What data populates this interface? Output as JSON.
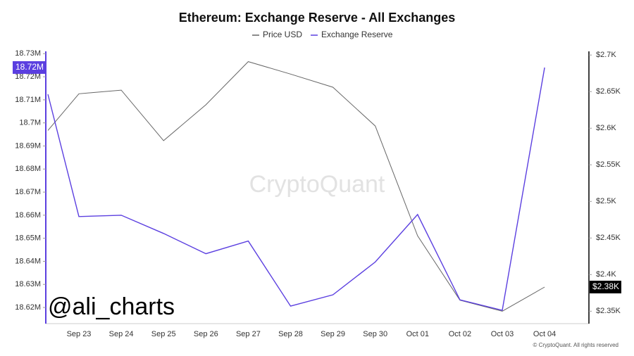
{
  "chart_data": {
    "type": "line",
    "title": "Ethereum: Exchange Reserve - All Exchanges",
    "watermark": "CryptoQuant",
    "handle": "@ali_charts",
    "copyright": "© CryptoQuant. All rights reserved",
    "categories": [
      null,
      "Sep 23",
      "Sep 24",
      "Sep 25",
      "Sep 26",
      "Sep 27",
      "Sep 28",
      "Sep 29",
      "Sep 30",
      "Oct 01",
      "Oct 02",
      "Oct 03",
      "Oct 04"
    ],
    "series": [
      {
        "name": "Price USD",
        "color": "#666666",
        "axis": "y2",
        "values": [
          2597,
          2647,
          2652,
          2583,
          2632,
          2691,
          2674,
          2656,
          2603,
          2453,
          2365,
          2350,
          2383
        ],
        "value_labels": [
          null,
          null,
          null,
          null,
          null,
          null,
          null,
          null,
          null,
          null,
          null,
          null,
          "$2.38K"
        ]
      },
      {
        "name": "Exchange Reserve",
        "color": "#5b3fe0",
        "values": [
          18712400,
          18659400,
          18660000,
          18652100,
          18643300,
          18648800,
          18620600,
          18625500,
          18639700,
          18660300,
          18623300,
          18618800,
          18724000
        ],
        "value_labels": [
          null,
          null,
          null,
          null,
          null,
          null,
          null,
          null,
          null,
          null,
          null,
          null,
          "18.72M"
        ]
      }
    ],
    "ylim": [
      18613000,
      18731000
    ],
    "yticks": [
      {
        "value": 18620000,
        "label": "18.62M"
      },
      {
        "value": 18630000,
        "label": "18.63M"
      },
      {
        "value": 18640000,
        "label": "18.64M"
      },
      {
        "value": 18650000,
        "label": "18.65M"
      },
      {
        "value": 18660000,
        "label": "18.66M"
      },
      {
        "value": 18670000,
        "label": "18.67M"
      },
      {
        "value": 18680000,
        "label": "18.68M"
      },
      {
        "value": 18690000,
        "label": "18.69M"
      },
      {
        "value": 18700000,
        "label": "18.7M"
      },
      {
        "value": 18710000,
        "label": "18.71M"
      },
      {
        "value": 18720000,
        "label": "18.72M"
      },
      {
        "value": 18730000,
        "label": "18.73M"
      }
    ],
    "y2lim": [
      2333,
      2705
    ],
    "y2ticks": [
      {
        "value": 2350,
        "label": "$2.35K"
      },
      {
        "value": 2400,
        "label": "$2.4K"
      },
      {
        "value": 2450,
        "label": "$2.45K"
      },
      {
        "value": 2500,
        "label": "$2.5K"
      },
      {
        "value": 2550,
        "label": "$2.55K"
      },
      {
        "value": 2600,
        "label": "$2.6K"
      },
      {
        "value": 2650,
        "label": "$2.65K"
      },
      {
        "value": 2700,
        "label": "$2.7K"
      }
    ],
    "grid": false
  }
}
